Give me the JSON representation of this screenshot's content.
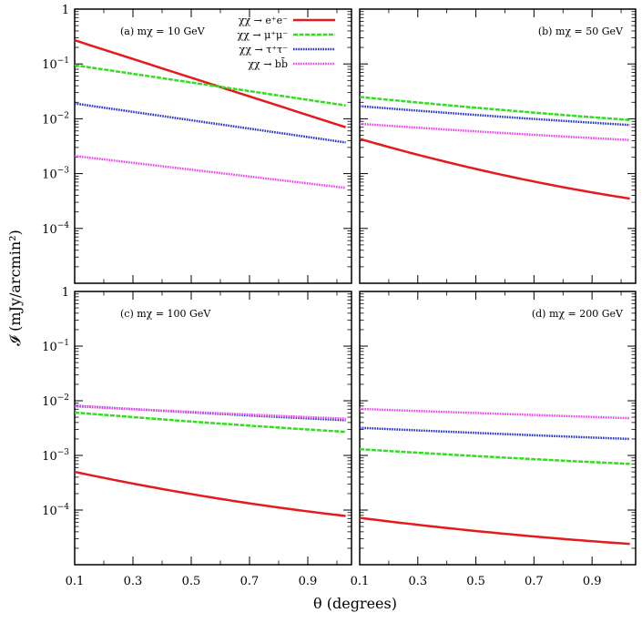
{
  "chart_data": {
    "type": "line",
    "xlabel": "θ (degrees)",
    "ylabel": "𝓘 (mJy/arcmin²)",
    "xlim": [
      0.1,
      1.05
    ],
    "ylim": [
      1e-05,
      1
    ],
    "yscale": "log",
    "x_ticks": [
      0.1,
      0.3,
      0.5,
      0.7,
      0.9
    ],
    "x_tick_labels": [
      "0.1",
      "0.3",
      "0.5",
      "0.7",
      "0.9"
    ],
    "y_ticks": [
      1,
      0.1,
      0.01,
      0.001,
      0.0001
    ],
    "y_tick_labels": [
      {
        "base": "1",
        "exp": ""
      },
      {
        "base": "10",
        "exp": "−1"
      },
      {
        "base": "10",
        "exp": "−2"
      },
      {
        "base": "10",
        "exp": "−3"
      },
      {
        "base": "10",
        "exp": "−4"
      }
    ],
    "legend": [
      {
        "label": "χχ → e⁺e⁻",
        "color": "#e41a1c",
        "dash": "solid"
      },
      {
        "label": "χχ → μ⁺μ⁻",
        "color": "#33dd22",
        "dash": "dashed"
      },
      {
        "label": "χχ → τ⁺τ⁻",
        "color": "#2233cc",
        "dash": "dotted"
      },
      {
        "label": "χχ → bb̄",
        "color": "#ee44ee",
        "dash": "dotted"
      }
    ],
    "x": [
      0.1,
      1.03
    ],
    "panels": [
      {
        "label": "(a) mχ = 10 GeV",
        "series": [
          {
            "name": "e+e-",
            "values": [
              0.27,
              0.007
            ],
            "curve": 0.0
          },
          {
            "name": "mu+mu-",
            "values": [
              0.095,
              0.0175
            ],
            "curve": 0.0
          },
          {
            "name": "tau+tau-",
            "values": [
              0.019,
              0.0037
            ],
            "curve": 0.0
          },
          {
            "name": "bb",
            "values": [
              0.0021,
              0.00055
            ],
            "curve": 0.0
          }
        ]
      },
      {
        "label": "(b) mχ = 50 GeV",
        "series": [
          {
            "name": "e+e-",
            "values": [
              0.0043,
              0.00035
            ],
            "curve": 0.6
          },
          {
            "name": "mu+mu-",
            "values": [
              0.025,
              0.0095
            ],
            "curve": 0.3
          },
          {
            "name": "tau+tau-",
            "values": [
              0.017,
              0.0077
            ],
            "curve": 0.3
          },
          {
            "name": "bb",
            "values": [
              0.0081,
              0.0041
            ],
            "curve": 0.3
          }
        ]
      },
      {
        "label": "(c) mχ = 100 GeV",
        "series": [
          {
            "name": "e+e-",
            "values": [
              0.0005,
              7.8e-05
            ],
            "curve": 0.6
          },
          {
            "name": "mu+mu-",
            "values": [
              0.0061,
              0.0027
            ],
            "curve": 0.3
          },
          {
            "name": "tau+tau-",
            "values": [
              0.0081,
              0.0044
            ],
            "curve": 0.2
          },
          {
            "name": "bb",
            "values": [
              0.0079,
              0.0047
            ],
            "curve": 0.2
          }
        ]
      },
      {
        "label": "(d) mχ = 200 GeV",
        "series": [
          {
            "name": "e+e-",
            "values": [
              7.2e-05,
              2.4e-05
            ],
            "curve": 0.6
          },
          {
            "name": "mu+mu-",
            "values": [
              0.0013,
              0.0007
            ],
            "curve": 0.3
          },
          {
            "name": "tau+tau-",
            "values": [
              0.0032,
              0.002
            ],
            "curve": 0.2
          },
          {
            "name": "bb",
            "values": [
              0.0071,
              0.0048
            ],
            "curve": 0.1
          }
        ]
      }
    ]
  }
}
